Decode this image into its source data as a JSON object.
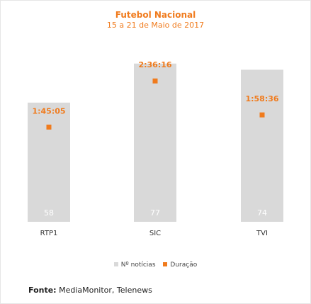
{
  "chart_data": {
    "type": "bar",
    "title": "Futebol Nacional",
    "subtitle": "15 a 21 de Maio de 2017",
    "categories": [
      "RTP1",
      "SIC",
      "TVI"
    ],
    "series": [
      {
        "name": "Nº notícias",
        "type": "bar",
        "values": [
          58,
          77,
          74
        ],
        "color": "#d9d9d9",
        "label_color": "#ffffff"
      },
      {
        "name": "Duração",
        "type": "scatter",
        "values": [
          "1:45:05",
          "2:36:16",
          "1:58:36"
        ],
        "values_seconds": [
          6305,
          9376,
          7116
        ],
        "color": "#f07b1d"
      }
    ],
    "ylim": [
      0,
      80
    ],
    "y2lim": [
      0,
      10000
    ],
    "grid": false,
    "legend_position": "bottom"
  },
  "source": {
    "label": "Fonte:",
    "text": "MediaMonitor, Telenews"
  }
}
